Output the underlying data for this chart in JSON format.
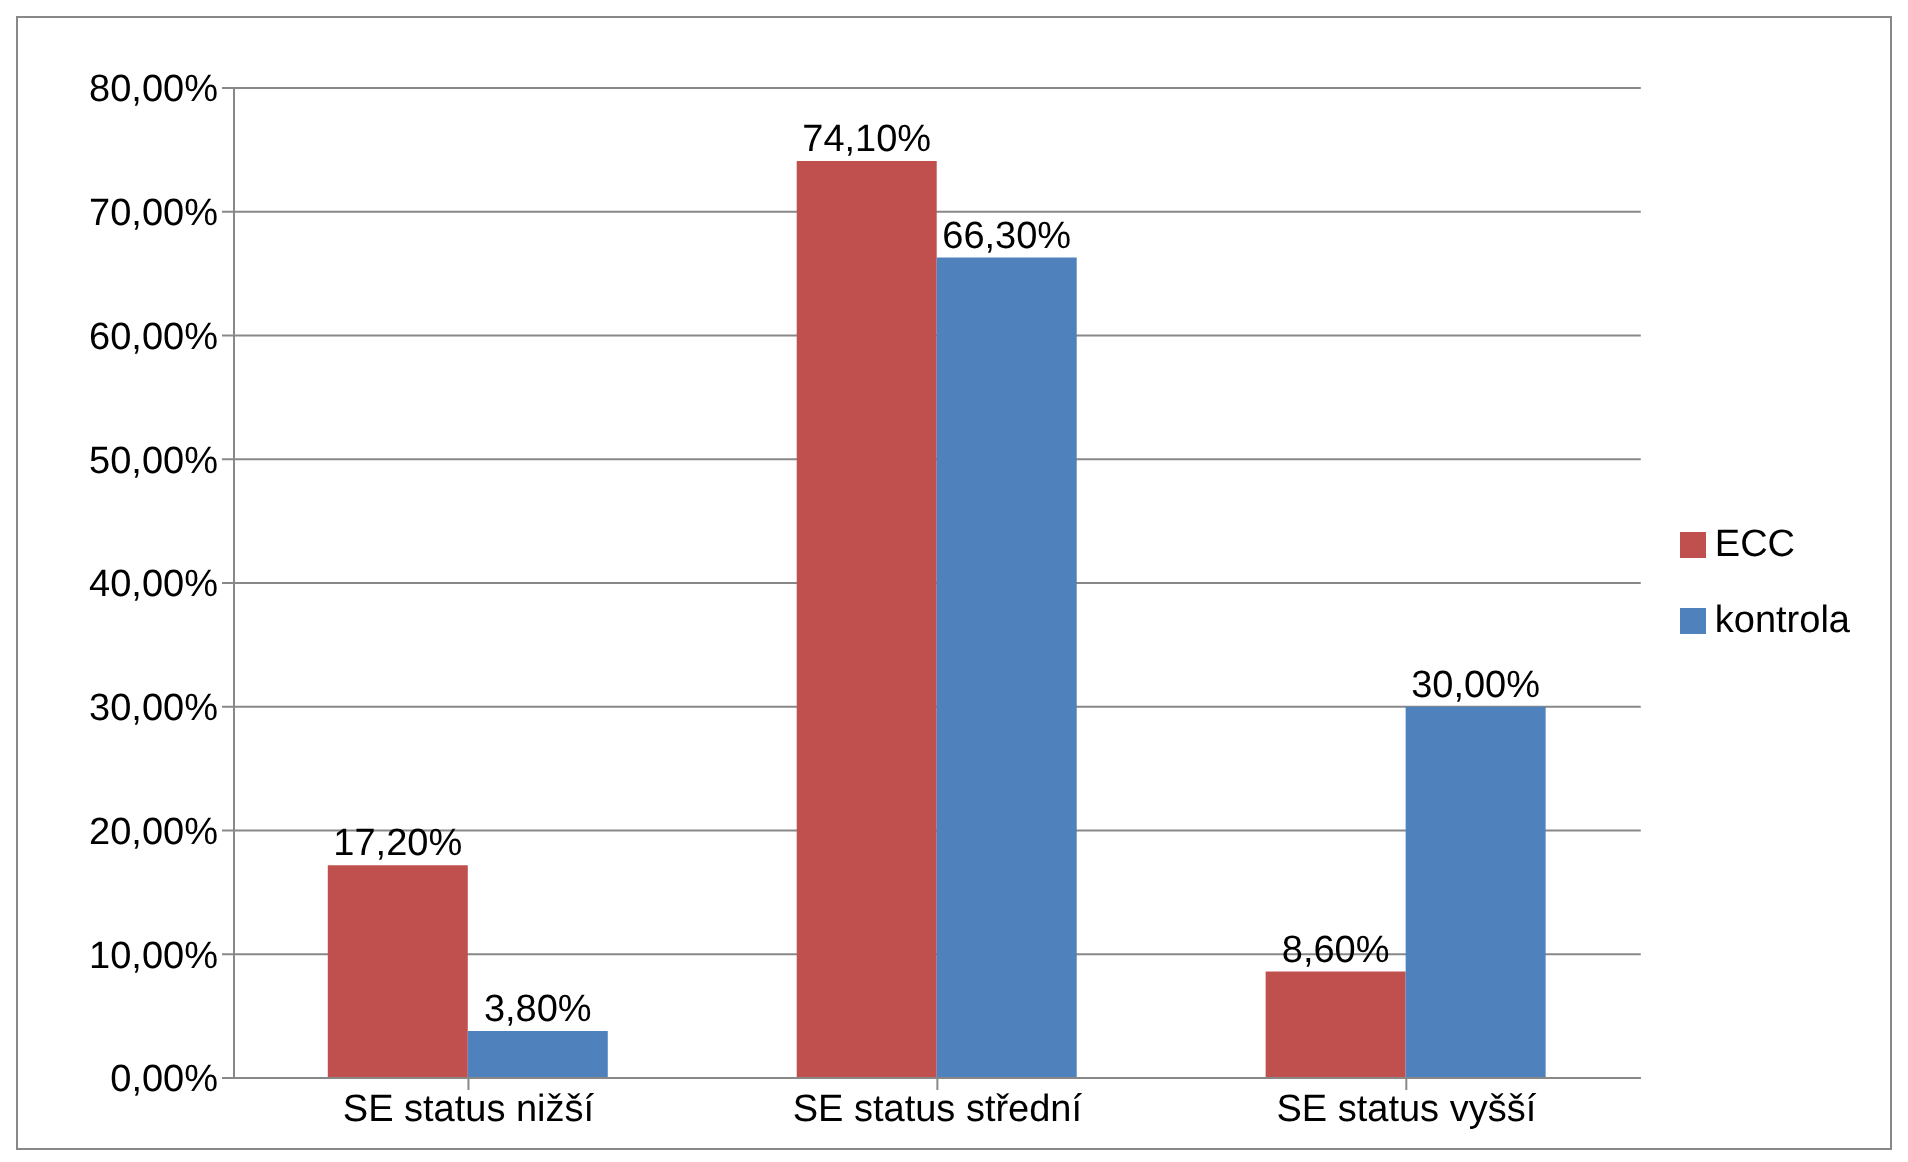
{
  "chart_data": {
    "type": "bar",
    "categories": [
      "SE status nižší",
      "SE status střední",
      "SE status vyšší"
    ],
    "series": [
      {
        "name": "ECC",
        "color": "#c0504d",
        "values": [
          17.2,
          74.1,
          8.6
        ],
        "value_labels": [
          "17,20%",
          "74,10%",
          "8,60%"
        ]
      },
      {
        "name": "kontrola",
        "color": "#4f81bd",
        "values": [
          3.8,
          66.3,
          30.0
        ],
        "value_labels": [
          "3,80%",
          "66,30%",
          "30,00%"
        ]
      }
    ],
    "ylim": [
      0,
      80
    ],
    "yticks": [
      {
        "value": 0,
        "label": "0,00%"
      },
      {
        "value": 10,
        "label": "10,00%"
      },
      {
        "value": 20,
        "label": "20,00%"
      },
      {
        "value": 30,
        "label": "30,00%"
      },
      {
        "value": 40,
        "label": "40,00%"
      },
      {
        "value": 50,
        "label": "50,00%"
      },
      {
        "value": 60,
        "label": "60,00%"
      },
      {
        "value": 70,
        "label": "70,00%"
      },
      {
        "value": 80,
        "label": "80,00%"
      }
    ],
    "grid": "y",
    "legend": "right"
  }
}
